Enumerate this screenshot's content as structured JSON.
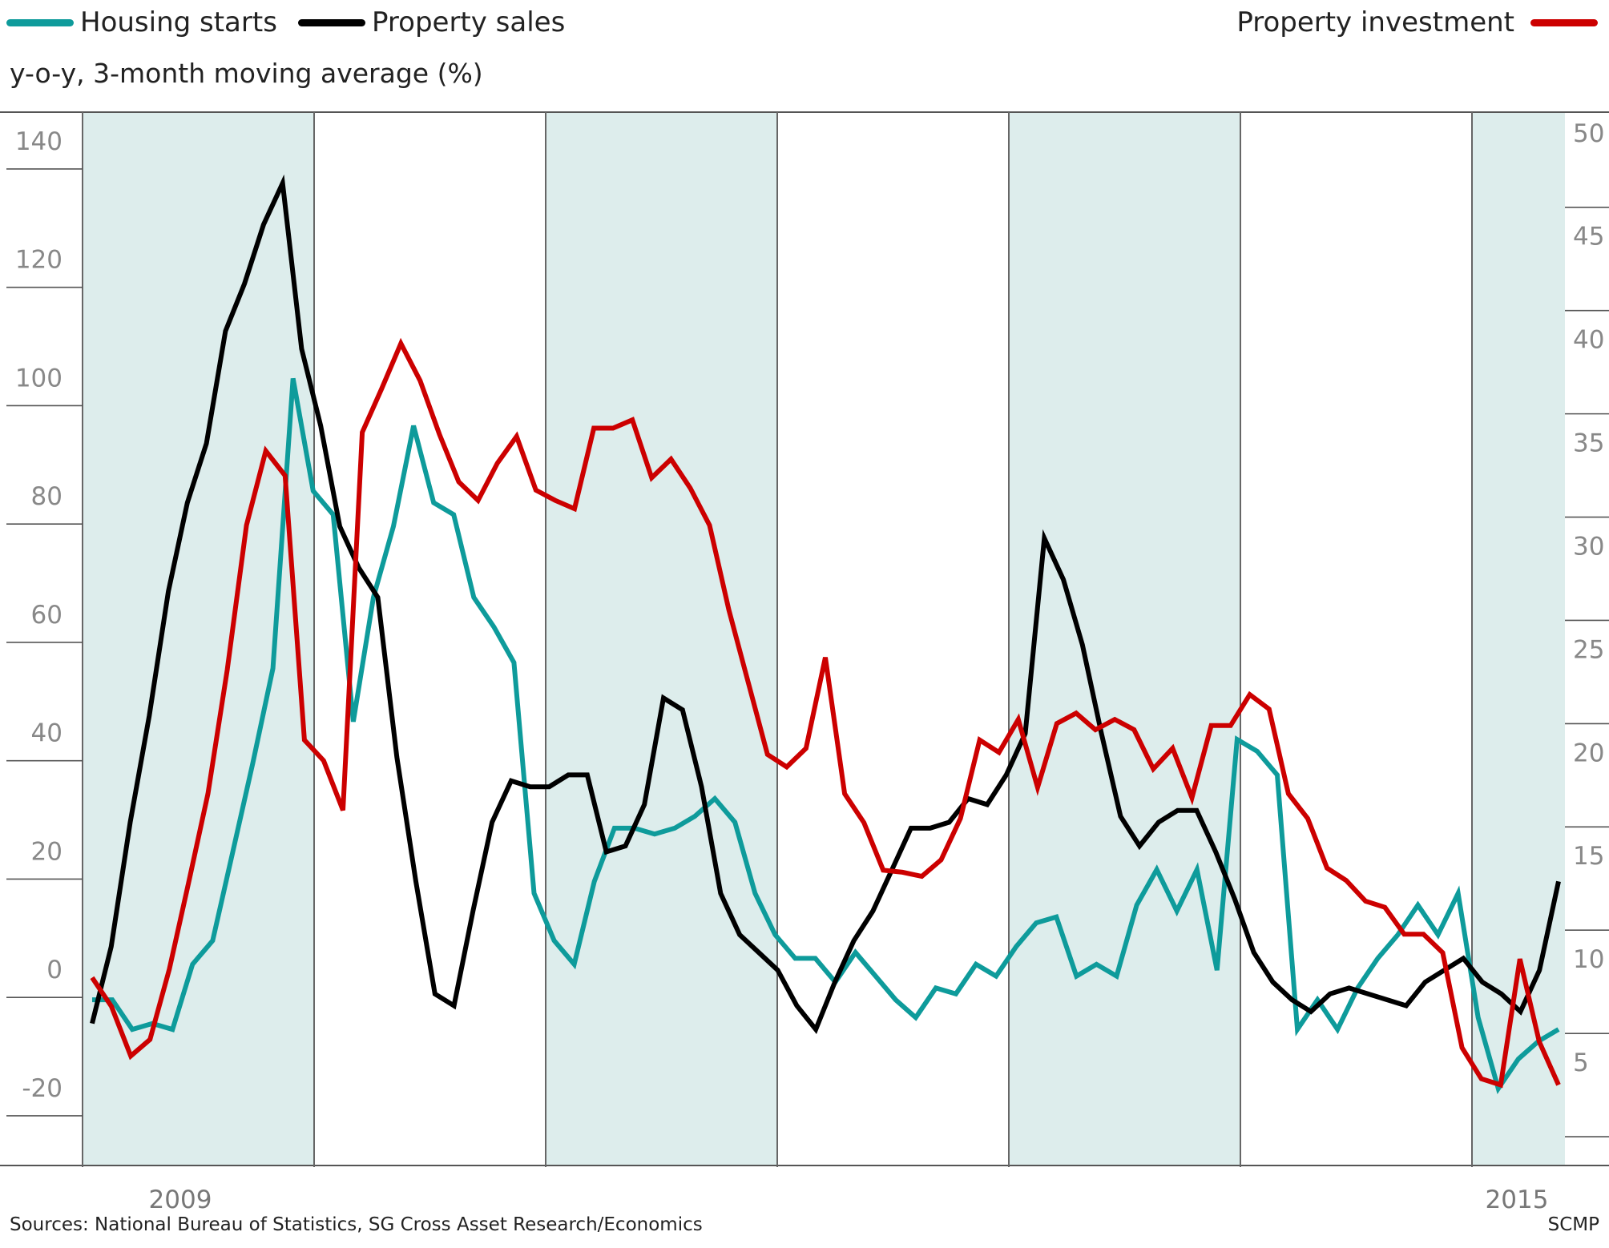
{
  "chart_data": {
    "type": "line",
    "subtitle": "y-o-y, 3-month moving average (%)",
    "left_axis": {
      "ylim": [
        -33,
        145
      ],
      "ticks": [
        140,
        120,
        100,
        80,
        60,
        40,
        20,
        0,
        -20
      ]
    },
    "right_axis": {
      "ylim": [
        0,
        51
      ],
      "ticks": [
        50,
        45,
        40,
        35,
        30,
        25,
        20,
        15,
        10,
        5
      ]
    },
    "x_labels": [
      "2009",
      "2015"
    ],
    "shaded_years": [
      2009,
      2011,
      2013,
      2015
    ],
    "colors": {
      "housing": "#0e9b9b",
      "sales": "#000000",
      "investment": "#cc0000",
      "shade": "#ddedec"
    },
    "series": [
      {
        "name": "Housing starts",
        "axis": "left",
        "values": [
          -5,
          -5,
          -10,
          -9,
          -10,
          1,
          5,
          20,
          35,
          51,
          100,
          81,
          77,
          42,
          63,
          75,
          92,
          79,
          77,
          63,
          58,
          52,
          13,
          5,
          1,
          15,
          24,
          24,
          23,
          24,
          26,
          29,
          25,
          13,
          6,
          2,
          2,
          -2,
          3,
          -1,
          -5,
          -8,
          -3,
          -4,
          1,
          -1,
          4,
          8,
          9,
          -1,
          1,
          -1,
          11,
          17,
          10,
          17,
          0,
          39,
          37,
          33,
          -10,
          -5,
          -10,
          -3,
          2,
          6,
          11,
          6,
          13,
          -8,
          -20,
          -15,
          -12,
          -10
        ]
      },
      {
        "name": "Property sales",
        "axis": "left",
        "values": [
          -9,
          4,
          25,
          43,
          64,
          79,
          89,
          108,
          116,
          126,
          133,
          105,
          92,
          75,
          68,
          63,
          36,
          15,
          -4,
          -6,
          10,
          25,
          32,
          31,
          31,
          33,
          33,
          20,
          21,
          28,
          46,
          44,
          31,
          13,
          6,
          3,
          0,
          -6,
          -10,
          -2,
          5,
          10,
          17,
          24,
          24,
          25,
          29,
          28,
          33,
          40,
          73,
          66,
          55,
          40,
          26,
          21,
          25,
          27,
          27,
          20,
          12,
          3,
          -2,
          -5,
          -7,
          -4,
          -3,
          -4,
          -5,
          -6,
          -2,
          0,
          2,
          -2,
          -4,
          -7,
          0,
          15
        ]
      },
      {
        "name": "Property investment",
        "axis": "right",
        "values": [
          9.1,
          7.7,
          5.3,
          6.1,
          9.5,
          13.7,
          18,
          24,
          31,
          34.6,
          33.4,
          20.6,
          19.6,
          17.2,
          35.5,
          37.6,
          39.8,
          38,
          35.4,
          33.1,
          32.2,
          34,
          35.3,
          32.7,
          32.2,
          31.8,
          35.7,
          35.7,
          36.1,
          33.3,
          34.2,
          32.8,
          31,
          26.9,
          23.4,
          19.9,
          19.3,
          20.2,
          24.6,
          18,
          16.6,
          14.3,
          14.2,
          14,
          14.8,
          16.8,
          20.6,
          20,
          21.6,
          18.3,
          21.4,
          21.9,
          21.1,
          21.6,
          21.1,
          19.2,
          20.2,
          17.8,
          21.3,
          21.3,
          22.8,
          22.1,
          18,
          16.8,
          14.4,
          13.8,
          12.8,
          12.5,
          11.2,
          11.2,
          10.3,
          5.7,
          4.2,
          3.9,
          10,
          6,
          3.9
        ]
      }
    ]
  },
  "legend": {
    "housing": "Housing starts",
    "sales": "Property sales",
    "investment": "Property investment"
  },
  "sources": "Sources: National Bureau of Statistics, SG Cross Asset Research/Economics",
  "credit": "SCMP"
}
